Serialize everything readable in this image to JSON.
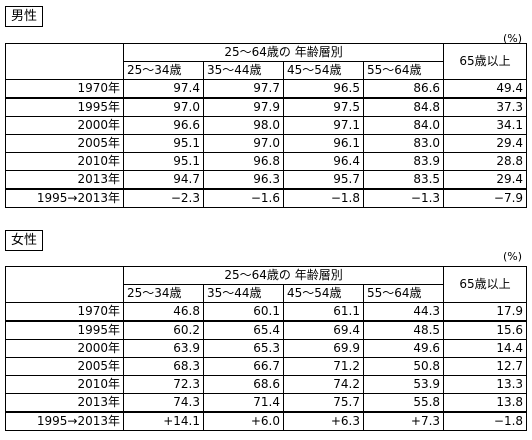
{
  "male": {
    "title": "男性",
    "unit": "(%)",
    "group_header": "25～64歳の 年齢層別",
    "columns": [
      "25～34歳",
      "35～44歳",
      "45～54歳",
      "55～64歳"
    ],
    "last_column": "65歳以上",
    "rows": [
      {
        "label": "1970年",
        "values": [
          "97.4",
          "97.7",
          "96.5",
          "86.6",
          "49.4"
        ]
      },
      {
        "label": "1995年",
        "values": [
          "97.0",
          "97.9",
          "97.5",
          "84.8",
          "37.3"
        ]
      },
      {
        "label": "2000年",
        "values": [
          "96.6",
          "98.0",
          "97.1",
          "84.0",
          "34.1"
        ]
      },
      {
        "label": "2005年",
        "values": [
          "95.1",
          "97.0",
          "96.1",
          "83.0",
          "29.4"
        ]
      },
      {
        "label": "2010年",
        "values": [
          "95.1",
          "96.8",
          "96.4",
          "83.9",
          "28.8"
        ]
      },
      {
        "label": "2013年",
        "values": [
          "94.7",
          "96.3",
          "95.7",
          "83.5",
          "29.4"
        ]
      },
      {
        "label": "1995→2013年",
        "values": [
          "−2.3",
          "−1.6",
          "−1.8",
          "−1.3",
          "−7.9"
        ]
      }
    ]
  },
  "female": {
    "title": "女性",
    "unit": "(%)",
    "group_header": "25～64歳の 年齢層別",
    "columns": [
      "25～34歳",
      "35～44歳",
      "45～54歳",
      "55～64歳"
    ],
    "last_column": "65歳以上",
    "rows": [
      {
        "label": "1970年",
        "values": [
          "46.8",
          "60.1",
          "61.1",
          "44.3",
          "17.9"
        ]
      },
      {
        "label": "1995年",
        "values": [
          "60.2",
          "65.4",
          "69.4",
          "48.5",
          "15.6"
        ]
      },
      {
        "label": "2000年",
        "values": [
          "63.9",
          "65.3",
          "69.9",
          "49.6",
          "14.4"
        ]
      },
      {
        "label": "2005年",
        "values": [
          "68.3",
          "66.7",
          "71.2",
          "50.8",
          "12.7"
        ]
      },
      {
        "label": "2010年",
        "values": [
          "72.3",
          "68.6",
          "74.2",
          "53.9",
          "13.3"
        ]
      },
      {
        "label": "2013年",
        "values": [
          "74.3",
          "71.4",
          "75.7",
          "55.8",
          "13.8"
        ]
      },
      {
        "label": "1995→2013年",
        "values": [
          "+14.1",
          "+6.0",
          "+6.3",
          "+7.3",
          "−1.8"
        ]
      }
    ]
  }
}
